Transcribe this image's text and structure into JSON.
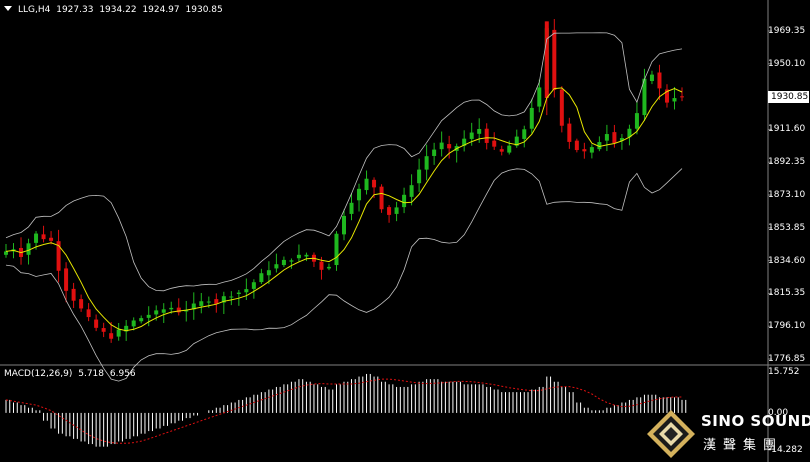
{
  "header": {
    "symbol": "LLG,H4",
    "open": "1927.33",
    "high": "1934.22",
    "low": "1924.97",
    "close": "1930.85"
  },
  "price_axis": {
    "ticks": [
      "1969.35",
      "1950.10",
      "1911.60",
      "1892.35",
      "1873.10",
      "1853.85",
      "1834.60",
      "1815.35",
      "1796.10",
      "1776.85"
    ],
    "current_price": "1930.85"
  },
  "macd": {
    "label": "MACD(12,26,9)",
    "main_value": "5.718",
    "signal_value": "6.956",
    "ticks": [
      "15.752",
      "0.00",
      "-14.282"
    ]
  },
  "colors": {
    "background": "#000000",
    "bull_candle": "#1fb81f",
    "bear_candle": "#e01010",
    "moving_average": "#e6e600",
    "bollinger": "#c0c0c0",
    "macd_histogram": "#ffffff",
    "macd_signal": "#e01010"
  },
  "logo": {
    "brand": "SINO SOUND",
    "brand_cn": "漢聲集團"
  },
  "chart_data": [
    {
      "type": "candlestick",
      "symbol": "LLG",
      "timeframe": "H4",
      "y_range": [
        1770,
        1980
      ],
      "price_path": [
        1840,
        1842,
        1838,
        1845,
        1850,
        1848,
        1846,
        1830,
        1818,
        1812,
        1806,
        1800,
        1795,
        1792,
        1790,
        1793,
        1796,
        1799,
        1801,
        1803,
        1804,
        1806,
        1807,
        1805,
        1806,
        1808,
        1810,
        1812,
        1810,
        1813,
        1815,
        1816,
        1818,
        1822,
        1826,
        1830,
        1832,
        1834,
        1836,
        1837,
        1838,
        1834,
        1830,
        1832,
        1850,
        1862,
        1870,
        1876,
        1882,
        1878,
        1866,
        1862,
        1866,
        1872,
        1880,
        1888,
        1896,
        1900,
        1903,
        1899,
        1902,
        1906,
        1909,
        1912,
        1905,
        1900,
        1898,
        1902,
        1906,
        1912,
        1925,
        1935,
        1970,
        1935,
        1915,
        1905,
        1900,
        1898,
        1900,
        1905,
        1910,
        1905,
        1907,
        1912,
        1920,
        1940,
        1945,
        1935,
        1928,
        1931,
        1930
      ]
    },
    {
      "type": "bar",
      "name": "MACD(12,26,9)",
      "y_range": [
        -14.282,
        15.752
      ],
      "values": [
        5,
        4,
        3,
        2,
        1,
        -3,
        -6,
        -8,
        -9,
        -10,
        -11,
        -12,
        -13,
        -13,
        -12,
        -11,
        -10,
        -9,
        -8,
        -7,
        -6,
        -5,
        -4,
        -3,
        -2,
        -1,
        0,
        1,
        2,
        3,
        4,
        5,
        6,
        7,
        8,
        9,
        10,
        11,
        12,
        13,
        12,
        11,
        10,
        9,
        11,
        12,
        13,
        14,
        15,
        14,
        12,
        11,
        10,
        10,
        11,
        12,
        13,
        13,
        12,
        12,
        12,
        11,
        11,
        11,
        10,
        9,
        8,
        8,
        8,
        8,
        9,
        10,
        14,
        12,
        10,
        8,
        4,
        2,
        1,
        1,
        2,
        3,
        4,
        5,
        6,
        7,
        7,
        6,
        6,
        6,
        5
      ]
    }
  ]
}
